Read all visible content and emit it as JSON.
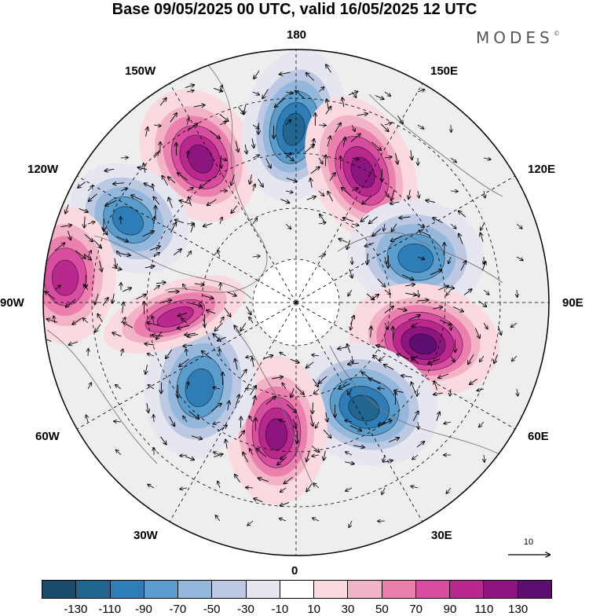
{
  "header": {
    "title": "Base 09/05/2025 00 UTC, valid 16/05/2025 12 UTC",
    "brand": "MODES"
  },
  "map": {
    "projection": "north-polar-stereographic",
    "longitude_labels": {
      "top": "180",
      "top_right": "150E",
      "right_upper": "120E",
      "right": "90E",
      "right_lower": "60E",
      "bottom_right": "30E",
      "bottom": "0",
      "bottom_left": "30W",
      "left_lower": "60W",
      "left": "90W",
      "left_upper": "120W",
      "top_left": "150W"
    },
    "reference_vector_label": "10",
    "anomaly_centers": [
      {
        "sign": "positive",
        "strength": "strong"
      },
      {
        "sign": "negative",
        "strength": "strong"
      },
      {
        "sign": "positive",
        "strength": "strong"
      },
      {
        "sign": "negative",
        "strength": "moderate"
      },
      {
        "sign": "negative",
        "strength": "moderate"
      },
      {
        "sign": "positive",
        "strength": "very strong"
      },
      {
        "sign": "negative",
        "strength": "strong"
      },
      {
        "sign": "positive",
        "strength": "strong"
      },
      {
        "sign": "negative",
        "strength": "moderate"
      },
      {
        "sign": "positive",
        "strength": "moderate"
      },
      {
        "sign": "positive",
        "strength": "moderate"
      }
    ]
  },
  "colorbar": {
    "tick_labels": [
      "-130",
      "-110",
      "-90",
      "-70",
      "-50",
      "-30",
      "-10",
      "10",
      "30",
      "50",
      "70",
      "90",
      "110",
      "130"
    ],
    "colors": [
      "#1b4a6b",
      "#21668e",
      "#2f7db6",
      "#5a9ccb",
      "#94b7dc",
      "#bdc9e3",
      "#e6e6f1",
      "#ffffff",
      "#fad9df",
      "#f3b3c7",
      "#eb7fae",
      "#d74d9f",
      "#b9288d",
      "#8d1580",
      "#5c0f70"
    ]
  }
}
